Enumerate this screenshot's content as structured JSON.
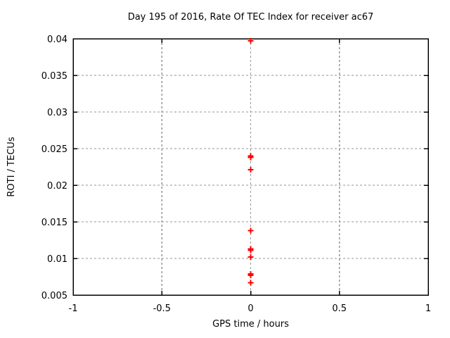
{
  "chart_data": {
    "type": "scatter",
    "title": "Day 195 of 2016, Rate Of TEC Index for receiver ac67",
    "xlabel": "GPS time / hours",
    "ylabel": "ROTI / TECUs",
    "xlim": [
      -1,
      1
    ],
    "ylim": [
      0.005,
      0.04
    ],
    "xticks": {
      "values": [
        -1,
        -0.5,
        0,
        0.5,
        1
      ],
      "labels": [
        "-1",
        "-0.5",
        "0",
        "0.5",
        "1"
      ]
    },
    "yticks": {
      "values": [
        0.005,
        0.01,
        0.015,
        0.02,
        0.025,
        0.03,
        0.035,
        0.04
      ],
      "labels": [
        "0.005",
        "0.01",
        "0.015",
        "0.02",
        "0.025",
        "0.03",
        "0.035",
        "0.04"
      ]
    },
    "grid": "on",
    "legend": "none",
    "colors": {
      "marker": "#ff0000",
      "grid": "#969696",
      "axis": "#000000",
      "text": "#000000",
      "background": "#ffffff"
    },
    "series": [
      {
        "name": "ROTI",
        "marker": "plus",
        "x": [
          0,
          0,
          0,
          0,
          0,
          0,
          0,
          0,
          0,
          0,
          0
        ],
        "y": [
          0.0397,
          0.024,
          0.0238,
          0.0221,
          0.0138,
          0.0113,
          0.0111,
          0.0102,
          0.0079,
          0.0077,
          0.0067
        ]
      }
    ]
  }
}
